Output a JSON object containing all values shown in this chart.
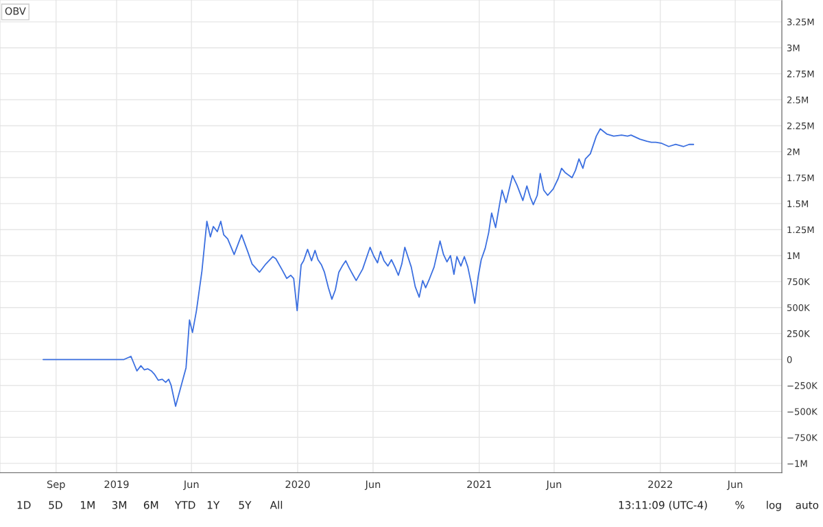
{
  "chart_data": {
    "type": "line",
    "title": "OBV",
    "x": [
      "2018-08-06",
      "2019-01-16",
      "2019-01-30",
      "2019-02-11",
      "2019-02-19",
      "2019-02-26",
      "2019-03-05",
      "2019-03-12",
      "2019-03-18",
      "2019-03-26",
      "2019-04-03",
      "2019-04-10",
      "2019-04-16",
      "2019-04-21",
      "2019-04-30",
      "2019-05-21",
      "2019-05-28",
      "2019-06-03",
      "2019-06-11",
      "2019-06-22",
      "2019-07-02",
      "2019-07-09",
      "2019-07-15",
      "2019-07-23",
      "2019-07-30",
      "2019-08-05",
      "2019-08-13",
      "2019-08-26",
      "2019-09-10",
      "2019-09-23",
      "2019-10-01",
      "2019-10-16",
      "2019-10-29",
      "2019-11-12",
      "2019-11-18",
      "2019-12-01",
      "2019-12-10",
      "2019-12-18",
      "2019-12-24",
      "2019-12-31",
      "2020-01-08",
      "2020-01-13",
      "2020-01-21",
      "2020-01-29",
      "2020-02-05",
      "2020-02-11",
      "2020-02-18",
      "2020-02-24",
      "2020-03-03",
      "2020-03-10",
      "2020-03-17",
      "2020-03-24",
      "2020-03-31",
      "2020-04-07",
      "2020-04-14",
      "2020-04-22",
      "2020-04-28",
      "2020-05-11",
      "2020-05-26",
      "2020-06-02",
      "2020-06-10",
      "2020-06-16",
      "2020-06-23",
      "2020-07-01",
      "2020-07-08",
      "2020-07-15",
      "2020-07-22",
      "2020-07-29",
      "2020-08-04",
      "2020-08-17",
      "2020-08-25",
      "2020-09-02",
      "2020-09-09",
      "2020-09-15",
      "2020-09-23",
      "2020-10-02",
      "2020-10-14",
      "2020-10-21",
      "2020-10-28",
      "2020-11-04",
      "2020-11-11",
      "2020-11-17",
      "2020-11-25",
      "2020-12-02",
      "2020-12-09",
      "2020-12-16",
      "2020-12-23",
      "2020-12-30",
      "2021-01-05",
      "2021-01-13",
      "2021-01-20",
      "2021-01-26",
      "2021-02-03",
      "2021-02-16",
      "2021-02-24",
      "2021-03-09",
      "2021-03-18",
      "2021-03-30",
      "2021-04-07",
      "2021-04-14",
      "2021-04-20",
      "2021-04-28",
      "2021-05-04",
      "2021-05-11",
      "2021-05-19",
      "2021-05-30",
      "2021-06-09",
      "2021-06-16",
      "2021-06-23",
      "2021-07-07",
      "2021-07-14",
      "2021-07-21",
      "2021-07-29",
      "2021-08-03",
      "2021-08-13",
      "2021-08-25",
      "2021-09-02",
      "2021-09-15",
      "2021-09-29",
      "2021-10-15",
      "2021-10-27",
      "2021-11-03",
      "2021-11-21",
      "2021-12-05",
      "2021-12-14",
      "2021-12-23",
      "2022-01-04",
      "2022-01-18",
      "2022-02-01",
      "2022-02-17",
      "2022-02-28",
      "2022-03-09"
    ],
    "series": [
      {
        "color": "#3b6fe0",
        "values": [
          0,
          0,
          30000,
          -110000,
          -60000,
          -100000,
          -90000,
          -110000,
          -140000,
          -200000,
          -190000,
          -220000,
          -190000,
          -250000,
          -450000,
          -80000,
          380000,
          260000,
          470000,
          850000,
          1330000,
          1180000,
          1280000,
          1230000,
          1330000,
          1200000,
          1160000,
          1010000,
          1200000,
          1030000,
          920000,
          840000,
          920000,
          990000,
          970000,
          860000,
          780000,
          810000,
          780000,
          470000,
          910000,
          950000,
          1060000,
          950000,
          1050000,
          960000,
          910000,
          840000,
          690000,
          580000,
          670000,
          840000,
          900000,
          950000,
          880000,
          810000,
          760000,
          870000,
          1080000,
          1000000,
          930000,
          1040000,
          950000,
          900000,
          960000,
          890000,
          810000,
          920000,
          1080000,
          890000,
          700000,
          600000,
          760000,
          690000,
          780000,
          890000,
          1140000,
          1010000,
          940000,
          1000000,
          820000,
          990000,
          900000,
          990000,
          890000,
          730000,
          540000,
          800000,
          960000,
          1070000,
          1220000,
          1410000,
          1270000,
          1630000,
          1510000,
          1770000,
          1680000,
          1530000,
          1670000,
          1560000,
          1490000,
          1580000,
          1790000,
          1630000,
          1580000,
          1640000,
          1740000,
          1840000,
          1800000,
          1750000,
          1820000,
          1930000,
          1840000,
          1930000,
          1980000,
          2150000,
          2220000,
          2170000,
          2150000,
          2160000,
          2150000,
          2160000,
          2120000,
          2100000,
          2090000,
          2090000,
          2080000,
          2050000,
          2070000,
          2050000,
          2070000,
          2070000
        ]
      }
    ],
    "xlim": [
      "2018-05-11",
      "2022-09-03"
    ],
    "xticks": [
      {
        "value": "2018-09-01",
        "label": "Sep"
      },
      {
        "value": "2019-01-01",
        "label": "2019"
      },
      {
        "value": "2019-06-01",
        "label": "Jun"
      },
      {
        "value": "2020-01-01",
        "label": "2020"
      },
      {
        "value": "2020-06-01",
        "label": "Jun"
      },
      {
        "value": "2021-01-01",
        "label": "2021"
      },
      {
        "value": "2021-06-01",
        "label": "Jun"
      },
      {
        "value": "2022-01-01",
        "label": "2022"
      },
      {
        "value": "2022-06-01",
        "label": "Jun"
      }
    ],
    "ylim": [
      -1090000,
      3460000
    ],
    "yticks": [
      {
        "value": -1000000,
        "label": "−1M"
      },
      {
        "value": -750000,
        "label": "−750K"
      },
      {
        "value": -500000,
        "label": "−500K"
      },
      {
        "value": -250000,
        "label": "−250K"
      },
      {
        "value": 0,
        "label": "0"
      },
      {
        "value": 250000,
        "label": "250K"
      },
      {
        "value": 500000,
        "label": "500K"
      },
      {
        "value": 750000,
        "label": "750K"
      },
      {
        "value": 1000000,
        "label": "1M"
      },
      {
        "value": 1250000,
        "label": "1.25M"
      },
      {
        "value": 1500000,
        "label": "1.5M"
      },
      {
        "value": 1750000,
        "label": "1.75M"
      },
      {
        "value": 2000000,
        "label": "2M"
      },
      {
        "value": 2250000,
        "label": "2.25M"
      },
      {
        "value": 2500000,
        "label": "2.5M"
      },
      {
        "value": 2750000,
        "label": "2.75M"
      },
      {
        "value": 3000000,
        "label": "3M"
      },
      {
        "value": 3250000,
        "label": "3.25M"
      }
    ],
    "grid": true,
    "marker": "none",
    "line_style": "solid",
    "annotations": [
      "1D",
      "5D",
      "1M",
      "3M",
      "6M",
      "YTD",
      "1Y",
      "5Y",
      "All",
      "13:11:09 (UTC-4)",
      "%",
      "log",
      "auto"
    ]
  }
}
